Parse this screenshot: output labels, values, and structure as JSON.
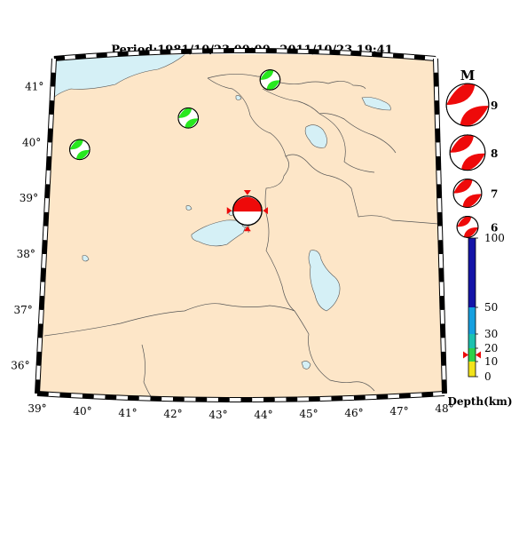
{
  "title": "Period:1981/10/23 00:00--2011/10/23 19:41",
  "colors": {
    "land": "#fde6c8",
    "water": "#d5f0f6",
    "border": "#555555",
    "compression": "#ee0a0a",
    "compression_small": "#27e81f",
    "dilatation": "#ffffff"
  },
  "map": {
    "lon_range": [
      39,
      48
    ],
    "lat_range": [
      35.5,
      41.5
    ],
    "lon_ticks": [
      "39°",
      "40°",
      "41°",
      "42°",
      "43°",
      "44°",
      "45°",
      "46°",
      "47°",
      "48°"
    ],
    "lat_ticks": [
      "36°",
      "37°",
      "38°",
      "39°",
      "40°",
      "41°"
    ]
  },
  "events": [
    {
      "name": "event-main",
      "lon": 43.6,
      "lat": 38.75,
      "mag": 7.1,
      "color": "#ee0a0a",
      "depth_km": 15
    },
    {
      "name": "event-nw",
      "lon": 39.7,
      "lat": 39.85,
      "mag": 5.9,
      "color": "#27e81f"
    },
    {
      "name": "event-center-north",
      "lon": 42.2,
      "lat": 40.35,
      "mag": 5.9,
      "color": "#27e81f"
    },
    {
      "name": "event-northeast",
      "lon": 44.1,
      "lat": 41.0,
      "mag": 5.9,
      "color": "#27e81f"
    }
  ],
  "legend": {
    "title": "M",
    "magnitudes": [
      {
        "label": "9"
      },
      {
        "label": "8"
      },
      {
        "label": "7"
      },
      {
        "label": "6"
      }
    ]
  },
  "depth_bar": {
    "title": "Depth(km)",
    "ticks": [
      "0",
      "10",
      "20",
      "30",
      "50",
      "100"
    ],
    "segments": [
      {
        "from": 0,
        "to": 10,
        "color": "#f2e31b"
      },
      {
        "from": 10,
        "to": 20,
        "color": "#2fd14a"
      },
      {
        "from": 20,
        "to": 30,
        "color": "#1cc1b0"
      },
      {
        "from": 30,
        "to": 50,
        "color": "#16a0e0"
      },
      {
        "from": 50,
        "to": 100,
        "color": "#1414a8"
      }
    ],
    "marker_depth": 15
  }
}
